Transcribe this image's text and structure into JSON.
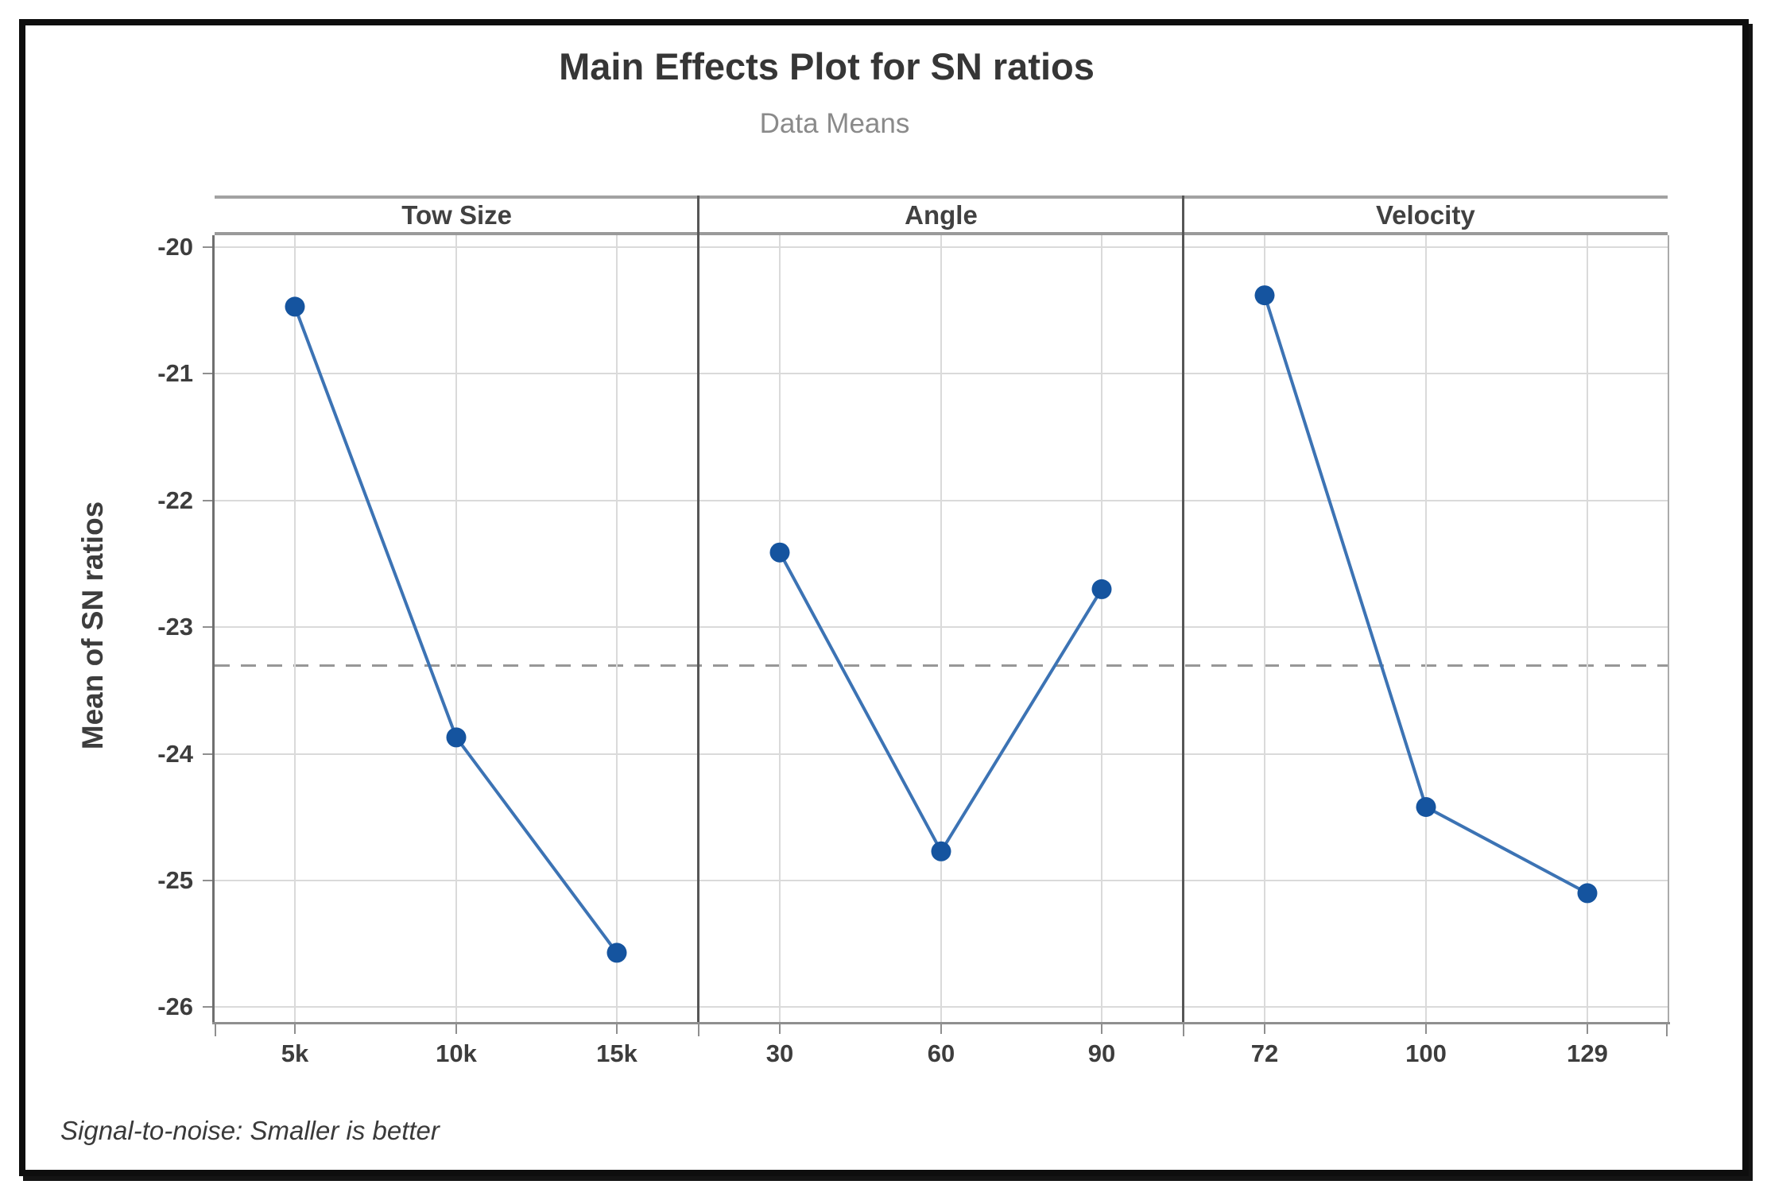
{
  "chart_data": {
    "type": "line",
    "title": "Main Effects Plot for SN ratios",
    "subtitle": "Data Means",
    "ylabel": "Mean of SN ratios",
    "ylim": [
      -26,
      -20
    ],
    "ytick_labels": [
      "-20",
      "-21",
      "-22",
      "-23",
      "-24",
      "-25",
      "-26"
    ],
    "grid": true,
    "panel_layout": "3 side-by-side factor panels sharing one y-axis",
    "legend_position": "none",
    "reference_line_mean": -23.3,
    "panels": [
      {
        "factor": "Tow Size",
        "categories": [
          "5k",
          "10k",
          "15k"
        ],
        "values": [
          -20.47,
          -23.87,
          -25.57
        ]
      },
      {
        "factor": "Angle",
        "categories": [
          "30",
          "60",
          "90"
        ],
        "values": [
          -22.41,
          -24.77,
          -22.7
        ]
      },
      {
        "factor": "Velocity",
        "categories": [
          "72",
          "100",
          "129"
        ],
        "values": [
          -20.38,
          -24.42,
          -25.1
        ]
      }
    ],
    "footnote": "Signal-to-noise: Smaller is better",
    "colors": {
      "line": "#3c73b4",
      "marker": "#15549f",
      "gridline": "#dadada",
      "reference": "#979797",
      "axis": "#8f8f8f",
      "panel_divider": "#565656",
      "header_border": "#a2a2a2",
      "title_text": "#363636",
      "subtitle_text": "#8a8a8a",
      "tick_text": "#3d3d3d",
      "frame": "#0e0e0e"
    }
  }
}
